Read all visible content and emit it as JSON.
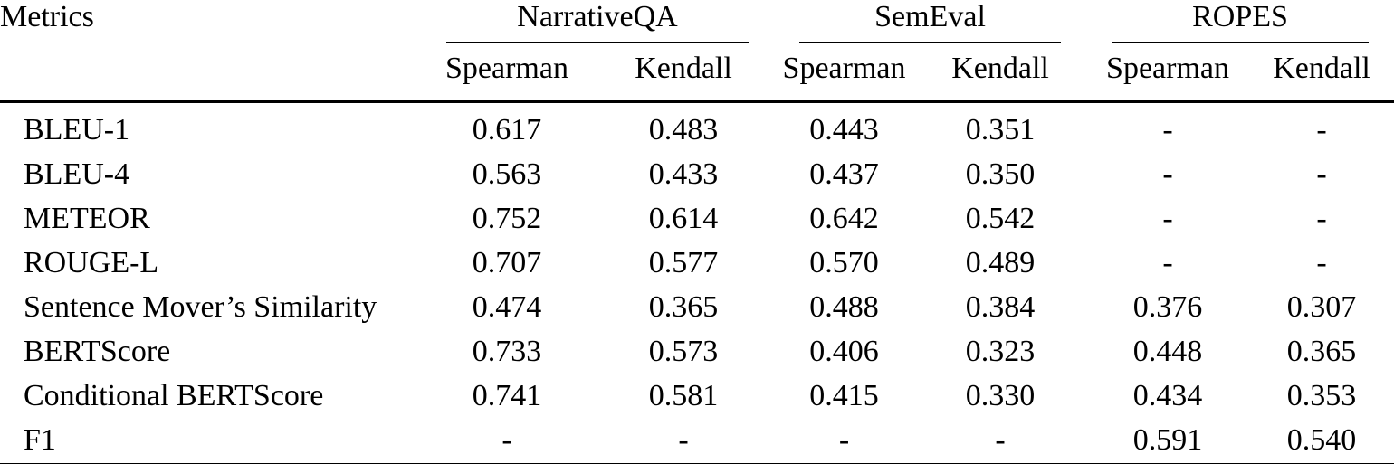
{
  "page": {
    "background_color": "#ffffff",
    "text_color": "#000000"
  },
  "table": {
    "metrics_header": "Metrics",
    "groups": [
      {
        "label": "NarrativeQA",
        "subcolumns": [
          "Spearman",
          "Kendall"
        ]
      },
      {
        "label": "SemEval",
        "subcolumns": [
          "Spearman",
          "Kendall"
        ]
      },
      {
        "label": "ROPES",
        "subcolumns": [
          "Spearman",
          "Kendall"
        ]
      }
    ],
    "rows": [
      {
        "metric": "BLEU-1",
        "values": [
          "0.617",
          "0.483",
          "0.443",
          "0.351",
          "-",
          "-"
        ],
        "bold": [
          false,
          false,
          false,
          false,
          false,
          false
        ]
      },
      {
        "metric": "BLEU-4",
        "values": [
          "0.563",
          "0.433",
          "0.437",
          "0.350",
          "-",
          "-"
        ],
        "bold": [
          false,
          false,
          false,
          false,
          false,
          false
        ]
      },
      {
        "metric": "METEOR",
        "values": [
          "0.752",
          "0.614",
          "0.642",
          "0.542",
          "-",
          "-"
        ],
        "bold": [
          true,
          true,
          true,
          true,
          false,
          false
        ]
      },
      {
        "metric": "ROUGE-L",
        "values": [
          "0.707",
          "0.577",
          "0.570",
          "0.489",
          "-",
          "-"
        ],
        "bold": [
          false,
          false,
          false,
          false,
          false,
          false
        ]
      },
      {
        "metric": "Sentence Mover’s Similarity",
        "values": [
          "0.474",
          "0.365",
          "0.488",
          "0.384",
          "0.376",
          "0.307"
        ],
        "bold": [
          false,
          false,
          false,
          false,
          false,
          false
        ]
      },
      {
        "metric": "BERTScore",
        "values": [
          "0.733",
          "0.573",
          "0.406",
          "0.323",
          "0.448",
          "0.365"
        ],
        "bold": [
          false,
          false,
          false,
          false,
          false,
          false
        ]
      },
      {
        "metric": "Conditional BERTScore",
        "values": [
          "0.741",
          "0.581",
          "0.415",
          "0.330",
          "0.434",
          "0.353"
        ],
        "bold": [
          false,
          false,
          false,
          false,
          false,
          false
        ]
      },
      {
        "metric": "F1",
        "values": [
          "-",
          "-",
          "-",
          "-",
          "0.591",
          "0.540"
        ],
        "bold": [
          false,
          false,
          false,
          false,
          true,
          true
        ]
      }
    ]
  },
  "chart_data": {
    "type": "table",
    "columns": [
      "Metrics",
      "NarrativeQA Spearman",
      "NarrativeQA Kendall",
      "SemEval Spearman",
      "SemEval Kendall",
      "ROPES Spearman",
      "ROPES Kendall"
    ],
    "rows": [
      [
        "BLEU-1",
        "0.617",
        "0.483",
        "0.443",
        "0.351",
        "-",
        "-"
      ],
      [
        "BLEU-4",
        "0.563",
        "0.433",
        "0.437",
        "0.350",
        "-",
        "-"
      ],
      [
        "METEOR",
        "0.752",
        "0.614",
        "0.642",
        "0.542",
        "-",
        "-"
      ],
      [
        "ROUGE-L",
        "0.707",
        "0.577",
        "0.570",
        "0.489",
        "-",
        "-"
      ],
      [
        "Sentence Mover’s Similarity",
        "0.474",
        "0.365",
        "0.488",
        "0.384",
        "0.376",
        "0.307"
      ],
      [
        "BERTScore",
        "0.733",
        "0.573",
        "0.406",
        "0.323",
        "0.448",
        "0.365"
      ],
      [
        "Conditional BERTScore",
        "0.741",
        "0.581",
        "0.415",
        "0.330",
        "0.434",
        "0.353"
      ],
      [
        "F1",
        "-",
        "-",
        "-",
        "-",
        "0.591",
        "0.540"
      ]
    ],
    "bold_cells_note": "METEOR row values for NarrativeQA and SemEval are bold; F1 row values for ROPES are bold"
  }
}
